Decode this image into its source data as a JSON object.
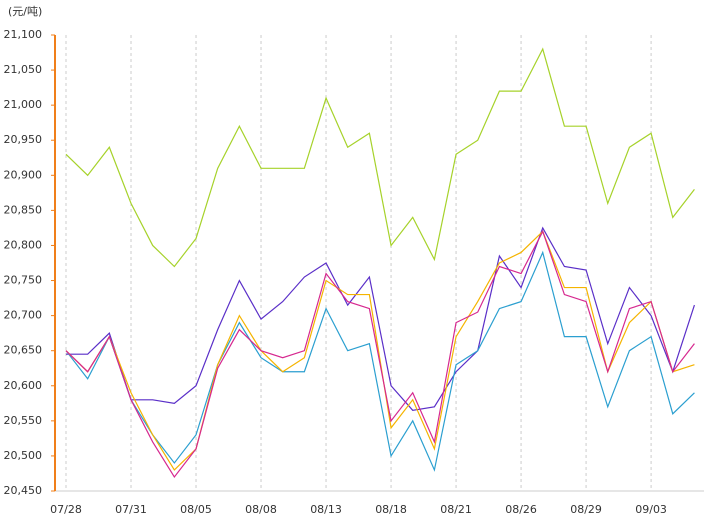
{
  "chart_data": {
    "type": "line",
    "y_label": "(元/吨)",
    "categories": [
      "07/28",
      null,
      null,
      "07/31",
      null,
      null,
      "08/05",
      null,
      null,
      "08/08",
      null,
      null,
      "08/13",
      null,
      null,
      "08/18",
      null,
      null,
      "08/21",
      null,
      null,
      "08/26",
      null,
      null,
      "08/29",
      null,
      null,
      "09/03",
      null,
      null
    ],
    "series": [
      {
        "color": "#a6d22a",
        "values": [
          20930,
          20900,
          20940,
          20860,
          20800,
          20770,
          20810,
          20910,
          20970,
          20910,
          20910,
          20910,
          21010,
          20940,
          20960,
          20800,
          20840,
          20780,
          20930,
          20950,
          21020,
          21020,
          21080,
          20970,
          20970,
          20860,
          20940,
          20960,
          20840,
          20880
        ]
      },
      {
        "color": "#5a2fc8",
        "values": [
          20645,
          20645,
          20675,
          20580,
          20580,
          20575,
          20600,
          20680,
          20750,
          20695,
          20720,
          20755,
          20775,
          20715,
          20755,
          20600,
          20565,
          20570,
          20620,
          20650,
          20785,
          20740,
          20825,
          20770,
          20765,
          20660,
          20740,
          20700,
          20620,
          20715
        ]
      },
      {
        "color": "#2b9fd0",
        "values": [
          20650,
          20610,
          20670,
          20580,
          20530,
          20490,
          20530,
          20630,
          20690,
          20640,
          20620,
          20620,
          20710,
          20650,
          20660,
          20500,
          20550,
          20480,
          20630,
          20650,
          20710,
          20720,
          20790,
          20670,
          20670,
          20570,
          20650,
          20670,
          20560,
          20590
        ]
      },
      {
        "color": "#f5b400",
        "values": [
          20650,
          20620,
          20670,
          20590,
          20530,
          20480,
          20510,
          20630,
          20700,
          20650,
          20620,
          20640,
          20750,
          20730,
          20730,
          20540,
          20580,
          20510,
          20670,
          20720,
          20775,
          20790,
          20820,
          20740,
          20740,
          20620,
          20690,
          20720,
          20620,
          20630
        ]
      },
      {
        "color": "#d6288f",
        "values": [
          20650,
          20620,
          20670,
          20580,
          20520,
          20470,
          20510,
          20625,
          20680,
          20650,
          20640,
          20650,
          20760,
          20720,
          20710,
          20550,
          20590,
          20520,
          20690,
          20705,
          20770,
          20760,
          20820,
          20730,
          20720,
          20620,
          20710,
          20720,
          20620,
          20660
        ]
      }
    ],
    "ylim": [
      20450,
      21100
    ],
    "yticks": [
      {
        "value": 20450,
        "label": "20,450"
      },
      {
        "value": 20500,
        "label": "20,500"
      },
      {
        "value": 20550,
        "label": "20,550"
      },
      {
        "value": 20600,
        "label": "20,600"
      },
      {
        "value": 20650,
        "label": "20,650"
      },
      {
        "value": 20700,
        "label": "20,700"
      },
      {
        "value": 20750,
        "label": "20,750"
      },
      {
        "value": 20800,
        "label": "20,800"
      },
      {
        "value": 20850,
        "label": "20,850"
      },
      {
        "value": 20900,
        "label": "20,900"
      },
      {
        "value": 20950,
        "label": "20,950"
      },
      {
        "value": 21000,
        "label": "21,000"
      },
      {
        "value": 21050,
        "label": "21,050"
      },
      {
        "value": 21100,
        "label": "21,100"
      }
    ],
    "axis_color": "#f07f1a"
  }
}
